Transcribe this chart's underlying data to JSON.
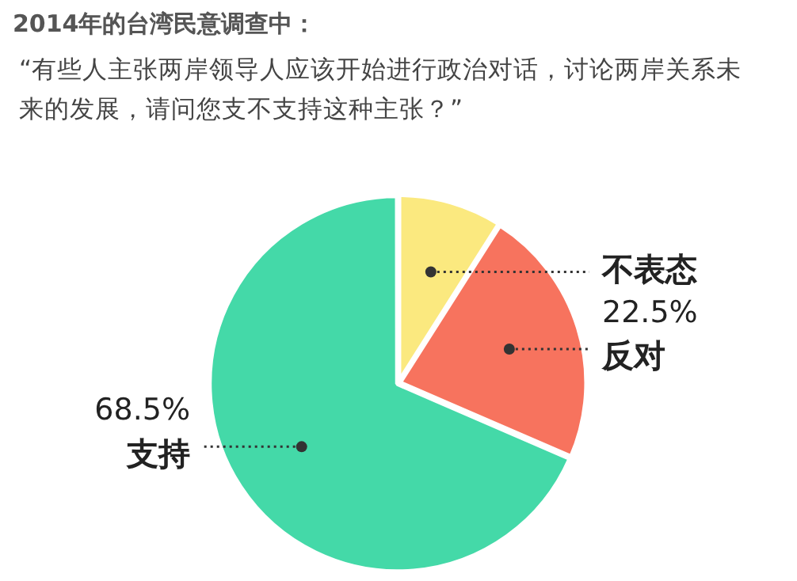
{
  "chart_data": {
    "type": "pie",
    "title": "2014年的台湾民意调查中：",
    "subtitle": "“有些人主张两岸领导人应该开始进行政治对话，讨论两岸关系未来的发展，请问您支不支持这种主张？”",
    "categories": [
      "不表态",
      "反对",
      "支持"
    ],
    "values": [
      9,
      22.5,
      68.5
    ],
    "colors": [
      "#fbe97f",
      "#f7735e",
      "#44d9a8"
    ],
    "value_labels": [
      null,
      "22.5%",
      "68.5%"
    ],
    "legend": false
  }
}
